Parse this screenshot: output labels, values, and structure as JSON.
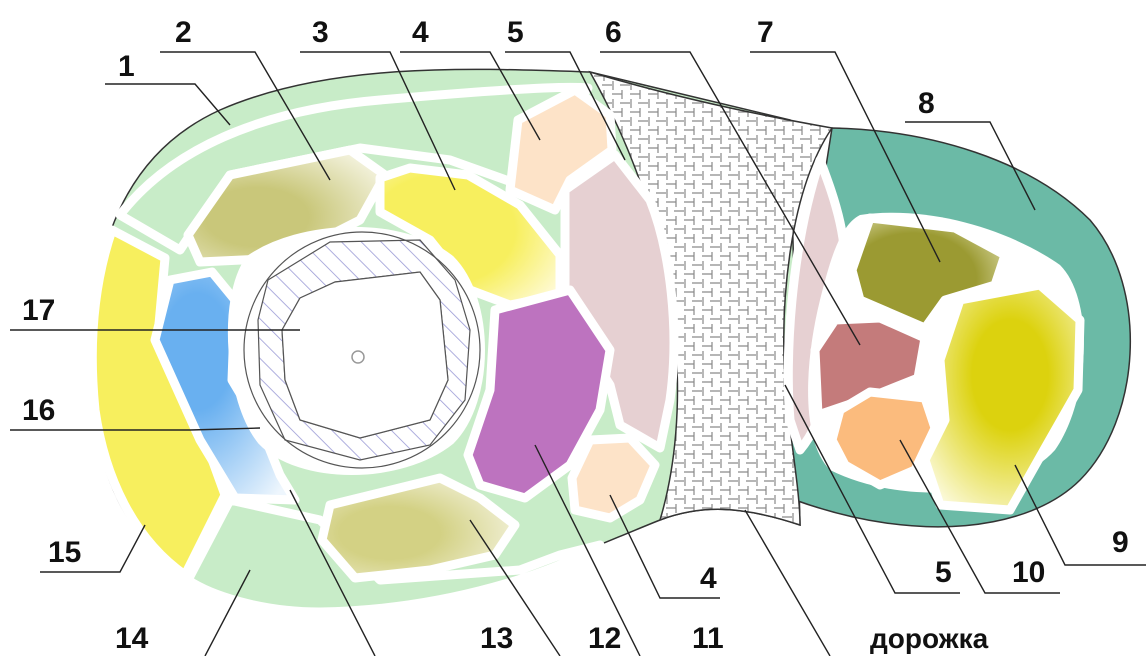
{
  "labels": {
    "l1": "1",
    "l2": "2",
    "l3": "3",
    "l4a": "4",
    "l5a": "5",
    "l6": "6",
    "l7": "7",
    "l8": "8",
    "l9": "9",
    "l10": "10",
    "l5b": "5",
    "l4b": "4",
    "l11": "11",
    "l12": "12",
    "l13": "13",
    "l14": "14",
    "l15": "15",
    "l16": "16",
    "l17": "17",
    "path": "дорожка"
  },
  "colors": {
    "lawn": "#c8ecc8",
    "olive_light": "#c9c77a",
    "yellow": "#f7ef5e",
    "peach": "#fde3c8",
    "pink": "#e6d0d2",
    "purple": "#bd73bf",
    "blue": "#69b0f0",
    "teal": "#6bbaa6",
    "olive_dark": "#9b9a32",
    "rose": "#c47b7b",
    "orange": "#fbbb7d",
    "lime": "#dcd20e",
    "hatch": "#9a9ad6"
  }
}
